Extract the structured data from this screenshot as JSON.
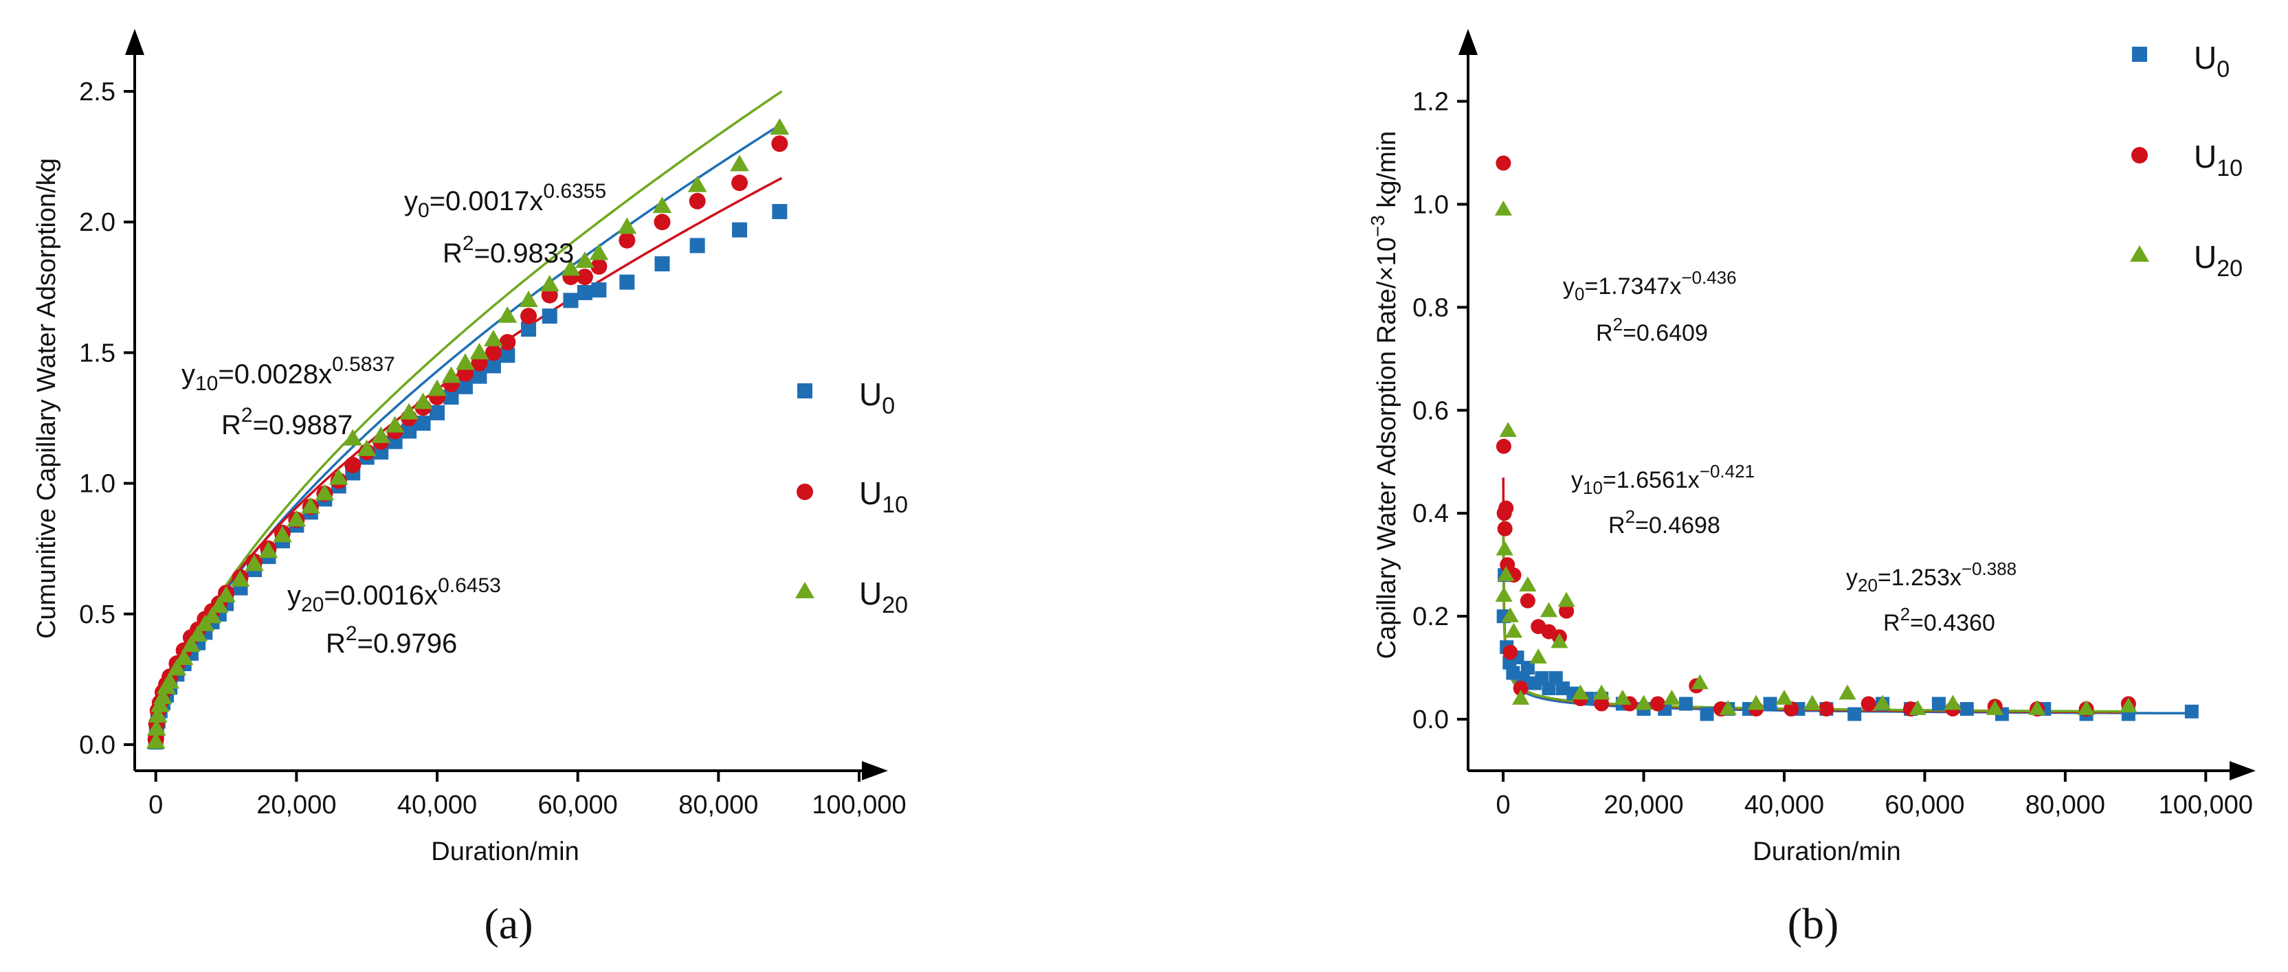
{
  "chart_data": [
    {
      "id": "a",
      "type": "scatter",
      "panel_label": "(a)",
      "xlabel": "Duration/min",
      "ylabel": "Cumunitive Capillary Water Adsorption/kg",
      "xlim": [
        -3000,
        100000
      ],
      "ylim": [
        -0.1,
        2.6
      ],
      "xticks": [
        0,
        20000,
        40000,
        60000,
        80000,
        100000
      ],
      "xtick_labels": [
        "0",
        "20,000",
        "40,000",
        "60,000",
        "80,000",
        "100,000"
      ],
      "yticks": [
        0,
        0.5,
        1,
        1.5,
        2,
        2.5
      ],
      "ytick_labels": [
        "0.0",
        "0.5",
        "1.0",
        "1.5",
        "2.0",
        "2.5"
      ],
      "legend": [
        {
          "name": "U",
          "sub": "0",
          "marker": "square",
          "color": "#1f6fb5"
        },
        {
          "name": "U",
          "sub": "10",
          "marker": "circle",
          "color": "#d0101b"
        },
        {
          "name": "U",
          "sub": "20",
          "marker": "triangle",
          "color": "#6fa81e"
        }
      ],
      "annotations": [
        {
          "pre": "y",
          "sub": "0",
          "mid": "=0.0017x",
          "sup": "0.6355",
          "r2": "R",
          "r2sup": "2",
          "r2val": "=0.9833"
        },
        {
          "pre": "y",
          "sub": "10",
          "mid": "=0.0028x",
          "sup": "0.5837",
          "r2": "R",
          "r2sup": "2",
          "r2val": "=0.9887"
        },
        {
          "pre": "y",
          "sub": "20",
          "mid": "=0.0016x",
          "sup": "0.6453",
          "r2": "R",
          "r2sup": "2",
          "r2val": "=0.9796"
        }
      ],
      "series": [
        {
          "name": "U0",
          "marker": "square",
          "color": "#1f6fb5",
          "fit": {
            "a": 0.0017,
            "b": 0.6355,
            "xmax": 89000
          },
          "x": [
            0,
            100,
            300,
            600,
            1000,
            1500,
            2000,
            3000,
            4000,
            5000,
            6000,
            7000,
            8000,
            9000,
            10000,
            12000,
            14000,
            16000,
            18000,
            20000,
            22000,
            24000,
            26000,
            28000,
            30000,
            32000,
            34000,
            36000,
            38000,
            40000,
            42000,
            44000,
            46000,
            48000,
            50000,
            53000,
            56000,
            59000,
            61000,
            63000,
            67000,
            72000,
            77000,
            83000,
            88700
          ],
          "y": [
            0.01,
            0.05,
            0.09,
            0.13,
            0.16,
            0.19,
            0.22,
            0.27,
            0.31,
            0.35,
            0.39,
            0.43,
            0.47,
            0.5,
            0.54,
            0.6,
            0.67,
            0.72,
            0.78,
            0.84,
            0.89,
            0.94,
            0.99,
            1.04,
            1.1,
            1.12,
            1.16,
            1.2,
            1.23,
            1.27,
            1.33,
            1.37,
            1.41,
            1.45,
            1.49,
            1.59,
            1.64,
            1.7,
            1.73,
            1.74,
            1.77,
            1.84,
            1.91,
            1.97,
            2.04
          ]
        },
        {
          "name": "U10",
          "marker": "circle",
          "color": "#d0101b",
          "fit": {
            "a": 0.0028,
            "b": 0.5837,
            "xmax": 89000
          },
          "x": [
            0,
            100,
            300,
            600,
            1000,
            1500,
            2000,
            3000,
            4000,
            5000,
            6000,
            7000,
            8000,
            9000,
            10000,
            12000,
            14000,
            16000,
            18000,
            20000,
            22000,
            24000,
            26000,
            28000,
            30000,
            32000,
            34000,
            36000,
            38000,
            40000,
            42000,
            44000,
            46000,
            48000,
            50000,
            53000,
            56000,
            59000,
            61000,
            63000,
            67000,
            72000,
            77000,
            83000,
            88700
          ],
          "y": [
            0.02,
            0.08,
            0.13,
            0.16,
            0.2,
            0.23,
            0.26,
            0.31,
            0.36,
            0.41,
            0.44,
            0.48,
            0.51,
            0.54,
            0.58,
            0.64,
            0.7,
            0.75,
            0.81,
            0.86,
            0.91,
            0.96,
            1.01,
            1.07,
            1.12,
            1.16,
            1.2,
            1.25,
            1.29,
            1.33,
            1.38,
            1.42,
            1.46,
            1.5,
            1.54,
            1.64,
            1.72,
            1.79,
            1.79,
            1.83,
            1.93,
            2.0,
            2.08,
            2.15,
            2.3
          ]
        },
        {
          "name": "U20",
          "marker": "triangle",
          "color": "#6fa81e",
          "fit": {
            "a": 0.0016,
            "b": 0.6453,
            "xmax": 89000
          },
          "x": [
            0,
            100,
            300,
            600,
            1000,
            1500,
            2000,
            3000,
            4000,
            5000,
            6000,
            7000,
            8000,
            9000,
            10000,
            12000,
            14000,
            16000,
            18000,
            20000,
            22000,
            24000,
            26000,
            28000,
            30000,
            32000,
            34000,
            36000,
            38000,
            40000,
            42000,
            44000,
            46000,
            48000,
            50000,
            53000,
            56000,
            59000,
            61000,
            63000,
            67000,
            72000,
            77000,
            83000,
            88700
          ],
          "y": [
            0.01,
            0.06,
            0.11,
            0.15,
            0.18,
            0.22,
            0.24,
            0.29,
            0.33,
            0.38,
            0.42,
            0.46,
            0.49,
            0.53,
            0.57,
            0.63,
            0.69,
            0.74,
            0.8,
            0.86,
            0.91,
            0.96,
            1.02,
            1.17,
            1.13,
            1.18,
            1.22,
            1.27,
            1.31,
            1.36,
            1.41,
            1.46,
            1.5,
            1.55,
            1.64,
            1.7,
            1.76,
            1.82,
            1.85,
            1.88,
            1.98,
            2.06,
            2.14,
            2.22,
            2.36
          ]
        }
      ]
    },
    {
      "id": "b",
      "type": "scatter",
      "panel_label": "(b)",
      "xlabel": "Duration/min",
      "ylabel_main": "Capillary Water Adsorption Rate/×10",
      "ylabel_sup": "−3",
      "ylabel_unit": " kg/min",
      "xlim": [
        -5000,
        103000
      ],
      "ylim": [
        -0.1,
        1.27
      ],
      "xticks": [
        0,
        20000,
        40000,
        60000,
        80000,
        100000
      ],
      "xtick_labels": [
        "0",
        "20,000",
        "40,000",
        "60,000",
        "80,000",
        "100,000"
      ],
      "yticks": [
        0,
        0.2,
        0.4,
        0.6,
        0.8,
        1.0,
        1.2
      ],
      "ytick_labels": [
        "0.0",
        "0.2",
        "0.4",
        "0.6",
        "0.8",
        "1.0",
        "1.2"
      ],
      "legend": [
        {
          "name": "U",
          "sub": "0",
          "marker": "square",
          "color": "#1f6fb5"
        },
        {
          "name": "U",
          "sub": "10",
          "marker": "circle",
          "color": "#d0101b"
        },
        {
          "name": "U",
          "sub": "20",
          "marker": "triangle",
          "color": "#6fa81e"
        }
      ],
      "annotations": [
        {
          "pre": "y",
          "sub": "0",
          "mid": "=1.7347x",
          "sup": "−0.436",
          "r2": "R",
          "r2sup": "2",
          "r2val": "=0.6409"
        },
        {
          "pre": "y",
          "sub": "10",
          "mid": "=1.6561x",
          "sup": "−0.421",
          "r2": "R",
          "r2sup": "2",
          "r2val": "=0.4698"
        },
        {
          "pre": "y",
          "sub": "20",
          "mid": "=1.253x",
          "sup": "−0.388",
          "r2": "R",
          "r2sup": "2",
          "r2val": "=0.4360"
        }
      ],
      "series": [
        {
          "name": "U0",
          "marker": "square",
          "color": "#1f6fb5",
          "fit": {
            "a": 1.7347,
            "b": -0.436,
            "xmin": 40,
            "xmax": 98000
          },
          "x": [
            60,
            200,
            500,
            900,
            1400,
            2000,
            2800,
            3500,
            4500,
            5500,
            6500,
            7500,
            8500,
            10000,
            12000,
            14000,
            17000,
            20000,
            23000,
            26000,
            29000,
            32000,
            35000,
            38000,
            42000,
            46000,
            50000,
            54000,
            58000,
            62000,
            66000,
            71000,
            77000,
            83000,
            89000,
            98000
          ],
          "y": [
            0.2,
            0.28,
            0.14,
            0.11,
            0.09,
            0.12,
            0.08,
            0.1,
            0.07,
            0.08,
            0.06,
            0.08,
            0.06,
            0.05,
            0.04,
            0.04,
            0.03,
            0.02,
            0.02,
            0.03,
            0.01,
            0.02,
            0.02,
            0.03,
            0.02,
            0.02,
            0.01,
            0.03,
            0.02,
            0.03,
            0.02,
            0.01,
            0.02,
            0.01,
            0.01,
            0.015
          ]
        },
        {
          "name": "U10",
          "marker": "circle",
          "color": "#d0101b",
          "fit": {
            "a": 1.6561,
            "b": -0.421,
            "xmin": 20,
            "xmax": 89000
          },
          "x": [
            30,
            80,
            150,
            250,
            400,
            600,
            1000,
            1500,
            2500,
            3500,
            5000,
            6500,
            8000,
            9000,
            11000,
            14000,
            18000,
            22000,
            27500,
            31000,
            36000,
            41000,
            46000,
            52000,
            58000,
            64000,
            70000,
            76000,
            83000,
            89000
          ],
          "y": [
            1.08,
            0.53,
            0.4,
            0.37,
            0.41,
            0.3,
            0.13,
            0.28,
            0.06,
            0.23,
            0.18,
            0.17,
            0.16,
            0.21,
            0.04,
            0.03,
            0.03,
            0.03,
            0.065,
            0.02,
            0.02,
            0.02,
            0.02,
            0.03,
            0.02,
            0.02,
            0.025,
            0.02,
            0.02,
            0.03
          ]
        },
        {
          "name": "U20",
          "marker": "triangle",
          "color": "#6fa81e",
          "fit": {
            "a": 1.253,
            "b": -0.388,
            "xmin": 20,
            "xmax": 89000
          },
          "x": [
            30,
            100,
            200,
            400,
            700,
            1000,
            1500,
            2500,
            3500,
            5000,
            6500,
            8000,
            9000,
            11000,
            14000,
            17000,
            20000,
            24000,
            28000,
            32000,
            36000,
            40000,
            44000,
            49000,
            54000,
            59000,
            64000,
            70000,
            76000,
            83000,
            89000
          ],
          "y": [
            0.99,
            0.24,
            0.33,
            0.28,
            0.56,
            0.2,
            0.17,
            0.04,
            0.26,
            0.12,
            0.21,
            0.15,
            0.23,
            0.05,
            0.05,
            0.04,
            0.03,
            0.04,
            0.07,
            0.02,
            0.03,
            0.04,
            0.03,
            0.05,
            0.03,
            0.02,
            0.03,
            0.02,
            0.02,
            0.02,
            0.025
          ]
        }
      ]
    }
  ]
}
